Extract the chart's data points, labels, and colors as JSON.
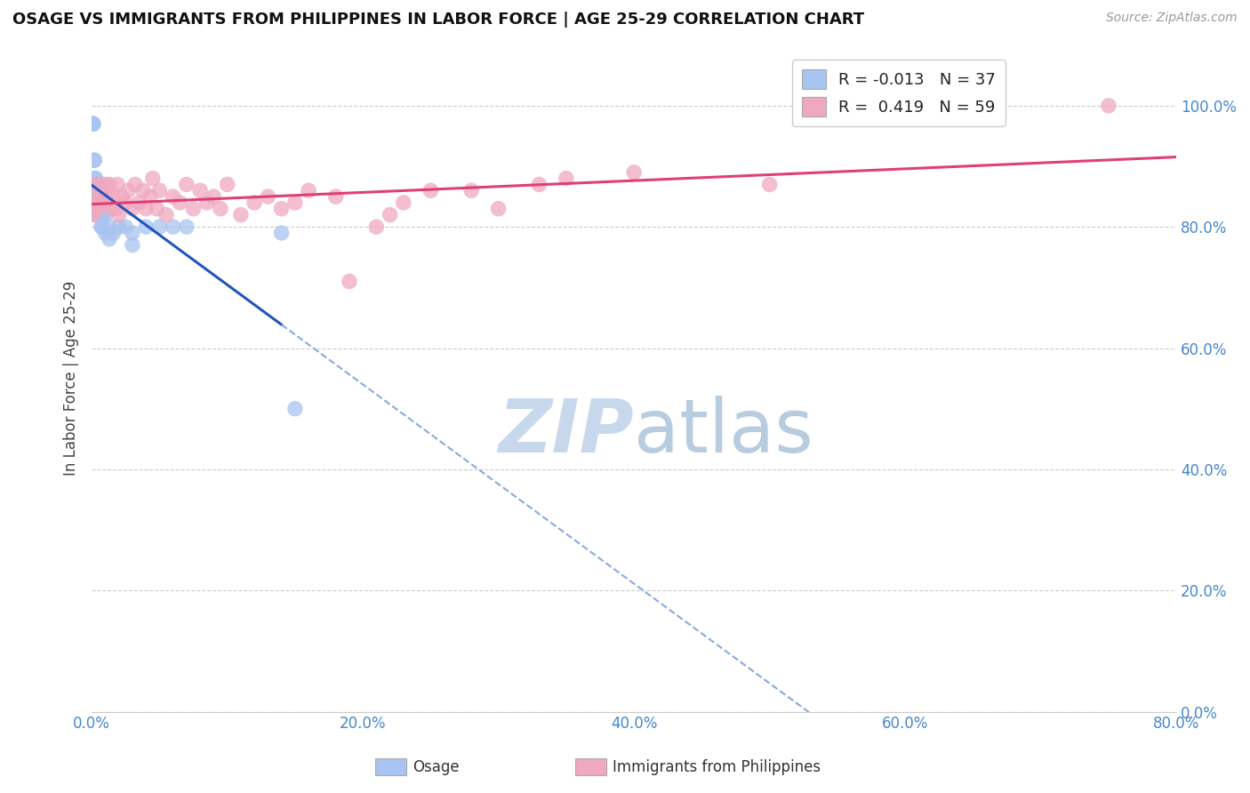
{
  "title": "OSAGE VS IMMIGRANTS FROM PHILIPPINES IN LABOR FORCE | AGE 25-29 CORRELATION CHART",
  "source_text": "Source: ZipAtlas.com",
  "ylabel": "In Labor Force | Age 25-29",
  "xmin": 0.0,
  "xmax": 0.8,
  "ymin": 0.0,
  "ymax": 1.1,
  "yticks": [
    0.0,
    0.2,
    0.4,
    0.6,
    0.8,
    1.0
  ],
  "ytick_labels": [
    "0.0%",
    "20.0%",
    "40.0%",
    "60.0%",
    "80.0%",
    "100.0%"
  ],
  "xticks": [
    0.0,
    0.2,
    0.4,
    0.6,
    0.8
  ],
  "xtick_labels": [
    "0.0%",
    "20.0%",
    "40.0%",
    "60.0%",
    "80.0%"
  ],
  "legend_r_osage": "-0.013",
  "legend_n_osage": "37",
  "legend_r_phil": "0.419",
  "legend_n_phil": "59",
  "osage_color": "#a8c4f0",
  "phil_color": "#f0a8c0",
  "trendline_osage_color": "#2255bb",
  "trendline_phil_color": "#e04070",
  "watermark_color": "#c8d8ec",
  "osage_x": [
    0.001,
    0.001,
    0.001,
    0.001,
    0.001,
    0.002,
    0.002,
    0.002,
    0.002,
    0.003,
    0.003,
    0.003,
    0.004,
    0.004,
    0.005,
    0.005,
    0.006,
    0.006,
    0.007,
    0.007,
    0.008,
    0.008,
    0.01,
    0.01,
    0.013,
    0.013,
    0.016,
    0.02,
    0.025,
    0.03,
    0.03,
    0.04,
    0.05,
    0.06,
    0.07,
    0.14,
    0.15
  ],
  "osage_y": [
    0.97,
    0.97,
    0.97,
    0.97,
    0.97,
    0.91,
    0.91,
    0.88,
    0.85,
    0.88,
    0.87,
    0.82,
    0.87,
    0.85,
    0.85,
    0.83,
    0.83,
    0.82,
    0.83,
    0.8,
    0.82,
    0.8,
    0.82,
    0.79,
    0.8,
    0.78,
    0.79,
    0.8,
    0.8,
    0.79,
    0.77,
    0.8,
    0.8,
    0.8,
    0.8,
    0.79,
    0.5
  ],
  "phil_x": [
    0.001,
    0.001,
    0.002,
    0.003,
    0.004,
    0.005,
    0.006,
    0.007,
    0.008,
    0.009,
    0.01,
    0.012,
    0.013,
    0.015,
    0.016,
    0.018,
    0.019,
    0.02,
    0.022,
    0.025,
    0.027,
    0.03,
    0.032,
    0.035,
    0.038,
    0.04,
    0.043,
    0.045,
    0.048,
    0.05,
    0.055,
    0.06,
    0.065,
    0.07,
    0.075,
    0.08,
    0.085,
    0.09,
    0.095,
    0.1,
    0.11,
    0.12,
    0.13,
    0.14,
    0.15,
    0.16,
    0.18,
    0.19,
    0.21,
    0.22,
    0.23,
    0.25,
    0.28,
    0.3,
    0.33,
    0.35,
    0.4,
    0.5,
    0.75
  ],
  "phil_y": [
    0.82,
    0.87,
    0.83,
    0.84,
    0.85,
    0.83,
    0.87,
    0.85,
    0.86,
    0.84,
    0.87,
    0.85,
    0.87,
    0.83,
    0.85,
    0.83,
    0.87,
    0.82,
    0.85,
    0.84,
    0.86,
    0.83,
    0.87,
    0.84,
    0.86,
    0.83,
    0.85,
    0.88,
    0.83,
    0.86,
    0.82,
    0.85,
    0.84,
    0.87,
    0.83,
    0.86,
    0.84,
    0.85,
    0.83,
    0.87,
    0.82,
    0.84,
    0.85,
    0.83,
    0.84,
    0.86,
    0.85,
    0.71,
    0.8,
    0.82,
    0.84,
    0.86,
    0.86,
    0.83,
    0.87,
    0.88,
    0.89,
    0.87,
    1.0
  ]
}
